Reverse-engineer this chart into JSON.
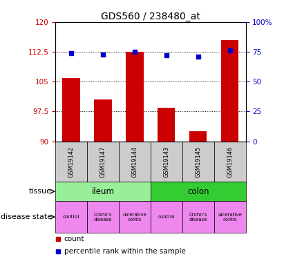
{
  "title": "GDS560 / 238480_at",
  "samples": [
    "GSM19142",
    "GSM19147",
    "GSM19144",
    "GSM19143",
    "GSM19145",
    "GSM19146"
  ],
  "bar_values": [
    106.0,
    100.5,
    112.5,
    98.5,
    92.5,
    115.5
  ],
  "percentile_values": [
    74,
    73,
    75,
    72,
    71,
    76
  ],
  "ylim_left": [
    90,
    120
  ],
  "ylim_right": [
    0,
    100
  ],
  "yticks_left": [
    90,
    97.5,
    105,
    112.5,
    120
  ],
  "ytick_labels_left": [
    "90",
    "97.5",
    "105",
    "112.5",
    "120"
  ],
  "yticks_right": [
    0,
    25,
    50,
    75,
    100
  ],
  "ytick_labels_right": [
    "0",
    "25",
    "50",
    "75",
    "100%"
  ],
  "bar_color": "#cc0000",
  "dot_color": "#0000cc",
  "grid_yticks": [
    97.5,
    105,
    112.5
  ],
  "tissue_labels": [
    {
      "label": "ileum",
      "span": [
        0,
        3
      ],
      "color": "#99ee99"
    },
    {
      "label": "colon",
      "span": [
        3,
        6
      ],
      "color": "#33cc33"
    }
  ],
  "disease_labels": [
    {
      "label": "control",
      "span": [
        0,
        1
      ],
      "color": "#ee88ee"
    },
    {
      "label": "Crohn’s\ndisease",
      "span": [
        1,
        2
      ],
      "color": "#ee88ee"
    },
    {
      "label": "ulcerative\ncolitis",
      "span": [
        2,
        3
      ],
      "color": "#ee88ee"
    },
    {
      "label": "control",
      "span": [
        3,
        4
      ],
      "color": "#ee88ee"
    },
    {
      "label": "Crohn’s\ndisease",
      "span": [
        4,
        5
      ],
      "color": "#ee88ee"
    },
    {
      "label": "ulcerative\ncolitis",
      "span": [
        5,
        6
      ],
      "color": "#ee88ee"
    }
  ],
  "left_axis_color": "#cc0000",
  "right_axis_color": "#0000cc",
  "legend_count_label": "count",
  "legend_pct_label": "percentile rank within the sample",
  "tissue_row_label": "tissue",
  "disease_row_label": "disease state"
}
